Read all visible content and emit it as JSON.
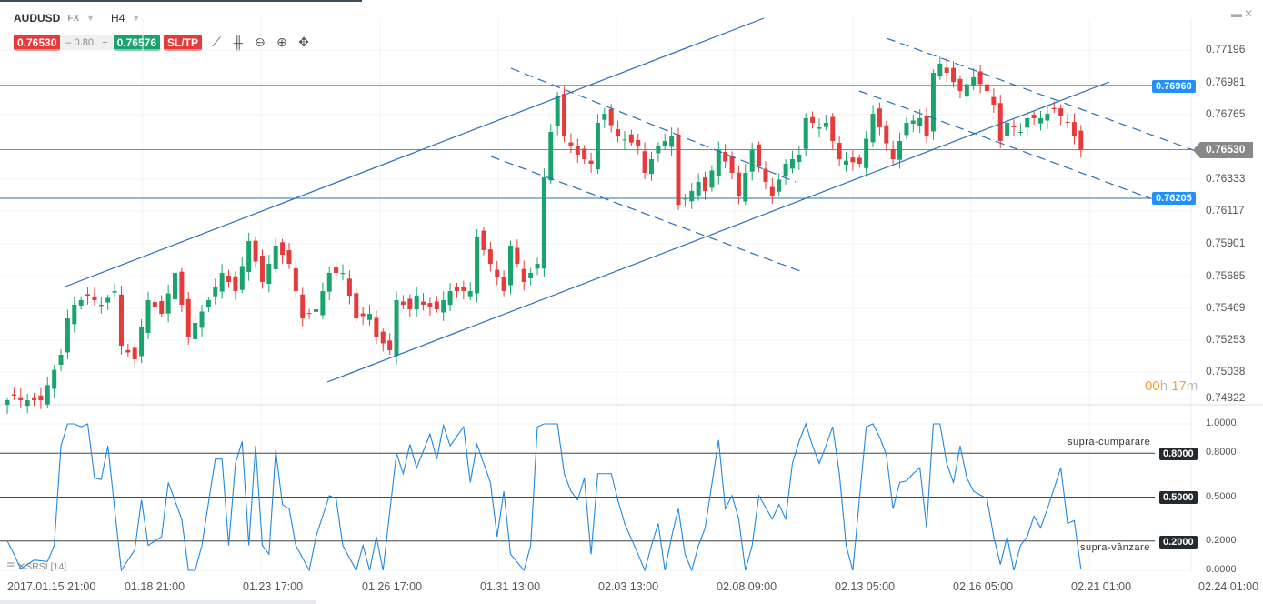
{
  "header": {
    "symbol": "AUDUSD",
    "market": "FX",
    "timeframe": "H4"
  },
  "toolbar": {
    "bid": "0.76530",
    "spread_minus": "–",
    "spread": "0.80",
    "spread_plus": "+",
    "ask": "0.76576",
    "sltp": "SL/TP",
    "icons": [
      "line-chart-icon",
      "candlestick-icon",
      "zoom-out-icon",
      "zoom-in-icon",
      "crosshair-icon"
    ]
  },
  "window": {
    "minimize": "▬",
    "close": "✕"
  },
  "price_axis": [
    "0.77196",
    "0.76981",
    "0.76765",
    "0.76530",
    "0.76333",
    "0.76117",
    "0.75901",
    "0.75685",
    "0.75469",
    "0.75253",
    "0.75038",
    "0.74822"
  ],
  "level_tags": {
    "upper": "0.76960",
    "current": "0.76530",
    "lower": "0.76205"
  },
  "timer": {
    "hours": "00",
    "h": "h",
    "minutes": "17",
    "m": "m"
  },
  "srsi": {
    "legend": "SRSI [14]",
    "axis": [
      "1.0000",
      "0.8000",
      "0.5000",
      "0.2000",
      "0.0000"
    ],
    "tags": [
      "0.8000",
      "0.5000",
      "0.2000"
    ],
    "overbought_label": "supra-cumparare",
    "oversold_label": "supra-vânzare"
  },
  "time_axis": [
    "2017.01.15 21:00",
    "01.18 21:00",
    "01.23 17:00",
    "01.26 17:00",
    "01.31 13:00",
    "02.03 13:00",
    "02.08 09:00",
    "02.13 05:00",
    "02.16 05:00",
    "02.21 01:00",
    "02.24 01:00"
  ],
  "colors": {
    "up": "#1aa36c",
    "down": "#e53b3b",
    "line": "#1e88e5",
    "trend": "#2a6db5",
    "tag": "#1e90ff"
  },
  "chart_data": {
    "type": "candlestick",
    "candles": 161,
    "close_waypoints": [
      [
        0,
        0.74855
      ],
      [
        1,
        0.74886
      ],
      [
        2,
        0.74855
      ],
      [
        5,
        0.74855
      ],
      [
        8,
        0.75159
      ],
      [
        9,
        0.75402
      ],
      [
        10,
        0.75494
      ],
      [
        12,
        0.75554
      ],
      [
        14,
        0.75494
      ],
      [
        16,
        0.75585
      ],
      [
        17,
        0.7522
      ],
      [
        19,
        0.75129
      ],
      [
        20,
        0.75342
      ],
      [
        21,
        0.75524
      ],
      [
        23,
        0.75433
      ],
      [
        25,
        0.75706
      ],
      [
        27,
        0.75281
      ],
      [
        28,
        0.75372
      ],
      [
        30,
        0.75524
      ],
      [
        32,
        0.75706
      ],
      [
        34,
        0.75585
      ],
      [
        36,
        0.75919
      ],
      [
        38,
        0.75646
      ],
      [
        40,
        0.75889
      ],
      [
        42,
        0.75767
      ],
      [
        44,
        0.75402
      ],
      [
        46,
        0.75463
      ],
      [
        48,
        0.75706
      ],
      [
        50,
        0.75706
      ],
      [
        52,
        0.75402
      ],
      [
        54,
        0.75433
      ],
      [
        55,
        0.75281
      ],
      [
        57,
        0.7519
      ],
      [
        58,
        0.75524
      ],
      [
        60,
        0.75463
      ],
      [
        61,
        0.75554
      ],
      [
        62,
        0.75494
      ],
      [
        64,
        0.75463
      ],
      [
        66,
        0.75585
      ],
      [
        69,
        0.75585
      ],
      [
        70,
        0.7595
      ],
      [
        72,
        0.75767
      ],
      [
        74,
        0.75585
      ],
      [
        75,
        0.75889
      ],
      [
        77,
        0.75646
      ],
      [
        79,
        0.75767
      ],
      [
        80,
        0.76345
      ],
      [
        81,
        0.76649
      ],
      [
        82,
        0.76892
      ],
      [
        83,
        0.76618
      ],
      [
        85,
        0.76497
      ],
      [
        87,
        0.76436
      ],
      [
        88,
        0.7671
      ],
      [
        89,
        0.7677
      ],
      [
        91,
        0.76618
      ],
      [
        94,
        0.76558
      ],
      [
        95,
        0.76375
      ],
      [
        97,
        0.76558
      ],
      [
        99,
        0.76618
      ],
      [
        100,
        0.76162
      ],
      [
        102,
        0.76254
      ],
      [
        103,
        0.76314
      ],
      [
        104,
        0.76254
      ],
      [
        106,
        0.76527
      ],
      [
        108,
        0.76375
      ],
      [
        109,
        0.76223
      ],
      [
        111,
        0.76527
      ],
      [
        113,
        0.76314
      ],
      [
        114,
        0.76223
      ],
      [
        116,
        0.76436
      ],
      [
        118,
        0.76497
      ],
      [
        119,
        0.7674
      ],
      [
        121,
        0.76679
      ],
      [
        122,
        0.7671
      ],
      [
        124,
        0.76466
      ],
      [
        127,
        0.76436
      ],
      [
        129,
        0.7677
      ],
      [
        130,
        0.76679
      ],
      [
        132,
        0.76466
      ],
      [
        134,
        0.7671
      ],
      [
        136,
        0.7674
      ],
      [
        137,
        0.76618
      ],
      [
        138,
        0.77044
      ],
      [
        139,
        0.77105
      ],
      [
        141,
        0.76983
      ],
      [
        142,
        0.76922
      ],
      [
        144,
        0.77014
      ],
      [
        146,
        0.76922
      ],
      [
        147,
        0.76831
      ],
      [
        148,
        0.76588
      ],
      [
        149,
        0.7671
      ],
      [
        151,
        0.76649
      ],
      [
        152,
        0.7674
      ],
      [
        154,
        0.7674
      ],
      [
        156,
        0.76801
      ],
      [
        158,
        0.7671
      ],
      [
        160,
        0.76527
      ]
    ],
    "srsi_waypoints": [
      [
        0,
        0.2
      ],
      [
        1,
        0.11
      ],
      [
        2,
        0.01
      ],
      [
        4,
        0.07
      ],
      [
        6,
        0.06
      ],
      [
        7,
        0.17
      ],
      [
        8,
        0.85
      ],
      [
        9,
        1
      ],
      [
        10,
        1
      ],
      [
        11,
        0.98
      ],
      [
        12,
        1
      ],
      [
        13,
        0.63
      ],
      [
        14,
        0.62
      ],
      [
        15,
        0.85
      ],
      [
        16,
        0.42
      ],
      [
        17,
        0
      ],
      [
        19,
        0.14
      ],
      [
        20,
        0.48
      ],
      [
        21,
        0.17
      ],
      [
        23,
        0.23
      ],
      [
        24,
        0.6
      ],
      [
        26,
        0.35
      ],
      [
        27,
        0
      ],
      [
        28,
        0
      ],
      [
        29,
        0.17
      ],
      [
        31,
        0.76
      ],
      [
        32,
        0.76
      ],
      [
        33,
        0.17
      ],
      [
        34,
        0.73
      ],
      [
        35,
        0.88
      ],
      [
        36,
        0.17
      ],
      [
        37,
        0.85
      ],
      [
        38,
        0.17
      ],
      [
        39,
        0.11
      ],
      [
        40,
        0.82
      ],
      [
        41,
        0.45
      ],
      [
        42,
        0.42
      ],
      [
        43,
        0.17
      ],
      [
        45,
        0
      ],
      [
        46,
        0.23
      ],
      [
        48,
        0.51
      ],
      [
        49,
        0.49
      ],
      [
        50,
        0.17
      ],
      [
        52,
        0
      ],
      [
        53,
        0.17
      ],
      [
        54,
        0
      ],
      [
        55,
        0.23
      ],
      [
        56,
        0
      ],
      [
        58,
        0.8
      ],
      [
        59,
        0.66
      ],
      [
        60,
        0.86
      ],
      [
        61,
        0.7
      ],
      [
        63,
        0.93
      ],
      [
        64,
        0.76
      ],
      [
        65,
        0.99
      ],
      [
        66,
        0.85
      ],
      [
        68,
        0.98
      ],
      [
        69,
        0.6
      ],
      [
        70,
        0.86
      ],
      [
        72,
        0.6
      ],
      [
        73,
        0.23
      ],
      [
        74,
        0.54
      ],
      [
        75,
        0.11
      ],
      [
        77,
        0
      ],
      [
        78,
        0.17
      ],
      [
        79,
        0.98
      ],
      [
        80,
        1
      ],
      [
        82,
        1
      ],
      [
        83,
        0.66
      ],
      [
        84,
        0.54
      ],
      [
        85,
        0.48
      ],
      [
        86,
        0.63
      ],
      [
        87,
        0.11
      ],
      [
        88,
        0.66
      ],
      [
        90,
        0.66
      ],
      [
        91,
        0.48
      ],
      [
        92,
        0.32
      ],
      [
        94,
        0.11
      ],
      [
        95,
        0
      ],
      [
        96,
        0.17
      ],
      [
        97,
        0.32
      ],
      [
        98,
        0
      ],
      [
        99,
        0.23
      ],
      [
        100,
        0.42
      ],
      [
        101,
        0.11
      ],
      [
        102,
        0
      ],
      [
        103,
        0.17
      ],
      [
        104,
        0.29
      ],
      [
        106,
        0.89
      ],
      [
        107,
        0.42
      ],
      [
        108,
        0.51
      ],
      [
        109,
        0.35
      ],
      [
        110,
        0
      ],
      [
        111,
        0.17
      ],
      [
        112,
        0.51
      ],
      [
        114,
        0.35
      ],
      [
        115,
        0.45
      ],
      [
        116,
        0.35
      ],
      [
        117,
        0.73
      ],
      [
        118,
        0.88
      ],
      [
        119,
        1
      ],
      [
        120,
        0.85
      ],
      [
        121,
        0.73
      ],
      [
        122,
        0.85
      ],
      [
        123,
        0.98
      ],
      [
        124,
        0.66
      ],
      [
        125,
        0.17
      ],
      [
        126,
        0
      ],
      [
        128,
        0.98
      ],
      [
        129,
        1
      ],
      [
        130,
        0.91
      ],
      [
        131,
        0.79
      ],
      [
        132,
        0.42
      ],
      [
        133,
        0.6
      ],
      [
        134,
        0.61
      ],
      [
        135,
        0.66
      ],
      [
        136,
        0.7
      ],
      [
        137,
        0.29
      ],
      [
        138,
        1
      ],
      [
        139,
        1
      ],
      [
        140,
        0.73
      ],
      [
        141,
        0.6
      ],
      [
        142,
        0.85
      ],
      [
        143,
        0.63
      ],
      [
        144,
        0.54
      ],
      [
        146,
        0.49
      ],
      [
        147,
        0.23
      ],
      [
        148,
        0.04
      ],
      [
        149,
        0.23
      ],
      [
        150,
        0
      ],
      [
        151,
        0.17
      ],
      [
        152,
        0.23
      ],
      [
        153,
        0.37
      ],
      [
        154,
        0.29
      ],
      [
        155,
        0.42
      ],
      [
        157,
        0.7
      ],
      [
        158,
        0.32
      ],
      [
        159,
        0.34
      ],
      [
        160,
        0.01
      ]
    ],
    "horizontal_levels": [
      0.7696,
      0.7653,
      0.76205
    ],
    "srsi_levels": [
      0.8,
      0.5,
      0.2
    ],
    "price_range": [
      0.74822,
      0.77196
    ],
    "srsi_range": [
      0,
      1
    ]
  }
}
